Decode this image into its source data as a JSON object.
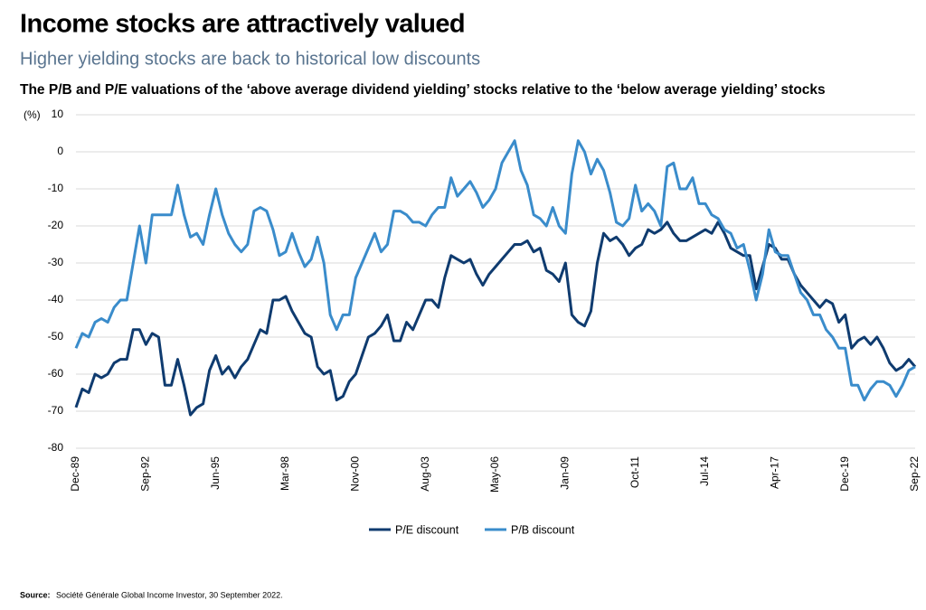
{
  "title": "Income stocks are attractively valued",
  "subtitle": "Higher yielding stocks are back to historical low discounts",
  "source_label": "Source:",
  "source": "Société Générale Global Income Investor, 30 September 2022.",
  "chart_data": {
    "type": "line",
    "title": "The P/B and P/E valuations of the ‘above average dividend yielding’ stocks relative to the ‘below average yielding’ stocks",
    "y_label": "(%)",
    "categories": [
      "Dec-89",
      null,
      null,
      null,
      null,
      null,
      null,
      null,
      null,
      null,
      null,
      "Sep-92",
      null,
      null,
      null,
      null,
      null,
      null,
      null,
      null,
      null,
      null,
      "Jun-95",
      null,
      null,
      null,
      null,
      null,
      null,
      null,
      null,
      null,
      null,
      "Mar-98",
      null,
      null,
      null,
      null,
      null,
      null,
      null,
      null,
      null,
      null,
      "Nov-00",
      null,
      null,
      null,
      null,
      null,
      null,
      null,
      null,
      null,
      null,
      "Aug-03",
      null,
      null,
      null,
      null,
      null,
      null,
      null,
      null,
      null,
      null,
      "May-06",
      null,
      null,
      null,
      null,
      null,
      null,
      null,
      null,
      null,
      null,
      "Jan-09",
      null,
      null,
      null,
      null,
      null,
      null,
      null,
      null,
      null,
      null,
      "Oct-11",
      null,
      null,
      null,
      null,
      null,
      null,
      null,
      null,
      null,
      null,
      "Jul-14",
      null,
      null,
      null,
      null,
      null,
      null,
      null,
      null,
      null,
      null,
      "Apr-17",
      null,
      null,
      null,
      null,
      null,
      null,
      null,
      null,
      null,
      null,
      "Dec-19",
      null,
      null,
      null,
      null,
      null,
      null,
      null,
      null,
      null,
      null,
      "Sep-22"
    ],
    "series": [
      {
        "name": "P/E discount",
        "color": "#0f3b6f",
        "values": [
          -69,
          -64,
          -65,
          -60,
          -61,
          -60,
          -57,
          -56,
          -56,
          -48,
          -48,
          -52,
          -49,
          -50,
          -63,
          -63,
          -56,
          -63,
          -71,
          -69,
          -68,
          -59,
          -55,
          -60,
          -58,
          -61,
          -58,
          -56,
          -52,
          -48,
          -49,
          -40,
          -40,
          -39,
          -43,
          -46,
          -49,
          -50,
          -58,
          -60,
          -59,
          -67,
          -66,
          -62,
          -60,
          -55,
          -50,
          -49,
          -47,
          -44,
          -51,
          -51,
          -46,
          -48,
          -44,
          -40,
          -40,
          -42,
          -34,
          -28,
          -29,
          -30,
          -29,
          -33,
          -36,
          -33,
          -31,
          -29,
          -27,
          -25,
          -25,
          -24,
          -27,
          -26,
          -32,
          -33,
          -35,
          -30,
          -44,
          -46,
          -47,
          -43,
          -30,
          -22,
          -24,
          -23,
          -25,
          -28,
          -26,
          -25,
          -21,
          -22,
          -21,
          -19,
          -22,
          -24,
          -24,
          -23,
          -22,
          -21,
          -22,
          -19,
          -22,
          -26,
          -27,
          -28,
          -28,
          -37,
          -31,
          -25,
          -26,
          -29,
          -29,
          -33,
          -36,
          -38,
          -40,
          -42,
          -40,
          -41,
          -46,
          -44,
          -53,
          -51,
          -50,
          -52,
          -50,
          -53,
          -57,
          -59,
          -58,
          -56,
          -58
        ]
      },
      {
        "name": "P/B discount",
        "color": "#3a8ccb",
        "values": [
          -53,
          -49,
          -50,
          -46,
          -45,
          -46,
          -42,
          -40,
          -40,
          -30,
          -20,
          -30,
          -17,
          -17,
          -17,
          -17,
          -9,
          -17,
          -23,
          -22,
          -25,
          -17,
          -10,
          -17,
          -22,
          -25,
          -27,
          -25,
          -16,
          -15,
          -16,
          -21,
          -28,
          -27,
          -22,
          -27,
          -31,
          -29,
          -23,
          -30,
          -44,
          -48,
          -44,
          -44,
          -34,
          -30,
          -26,
          -22,
          -27,
          -25,
          -16,
          -16,
          -17,
          -19,
          -19,
          -20,
          -17,
          -15,
          -15,
          -7,
          -12,
          -10,
          -8,
          -11,
          -15,
          -13,
          -10,
          -3,
          0,
          3,
          -5,
          -9,
          -17,
          -18,
          -20,
          -15,
          -20,
          -22,
          -6,
          3,
          0,
          -6,
          -2,
          -5,
          -11,
          -19,
          -20,
          -18,
          -9,
          -16,
          -14,
          -16,
          -20,
          -4,
          -3,
          -10,
          -10,
          -7,
          -14,
          -14,
          -17,
          -18,
          -21,
          -22,
          -26,
          -25,
          -32,
          -40,
          -33,
          -21,
          -27,
          -28,
          -28,
          -33,
          -38,
          -40,
          -44,
          -44,
          -48,
          -50,
          -53,
          -53,
          -63,
          -63,
          -67,
          -64,
          -62,
          -62,
          -63,
          -66,
          -63,
          -59,
          -58
        ]
      }
    ],
    "ylim": [
      -80,
      10
    ],
    "yticks": [
      10,
      0,
      -10,
      -20,
      -30,
      -40,
      -50,
      -60,
      -70,
      -80
    ],
    "grid": true,
    "legend": "bottom"
  }
}
